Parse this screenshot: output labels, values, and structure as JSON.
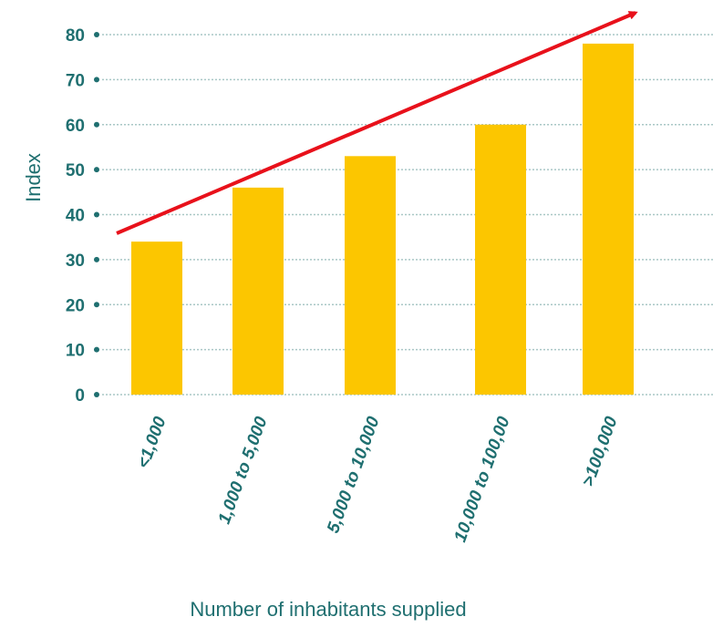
{
  "colors": {
    "bar": "#fcc600",
    "text": "#1f6f70",
    "grid": "#a9c7c6",
    "trend_arrow": "#e8111b"
  },
  "chart_data": {
    "type": "bar",
    "categories": [
      "<1,000",
      "1,000 to 5,000",
      "5,000 to 10,000",
      "10,000 to 100,00",
      ">100,000"
    ],
    "values": [
      34,
      46,
      53,
      60,
      78
    ],
    "xlabel": "Number of inhabitants supplied",
    "ylabel": "Index",
    "ylim": [
      0,
      80
    ],
    "yticks": [
      0,
      10,
      20,
      30,
      40,
      50,
      60,
      70,
      80
    ],
    "grid": true,
    "annotations": [
      {
        "type": "trend-arrow",
        "color": "#e8111b",
        "direction": "up-right"
      }
    ]
  }
}
